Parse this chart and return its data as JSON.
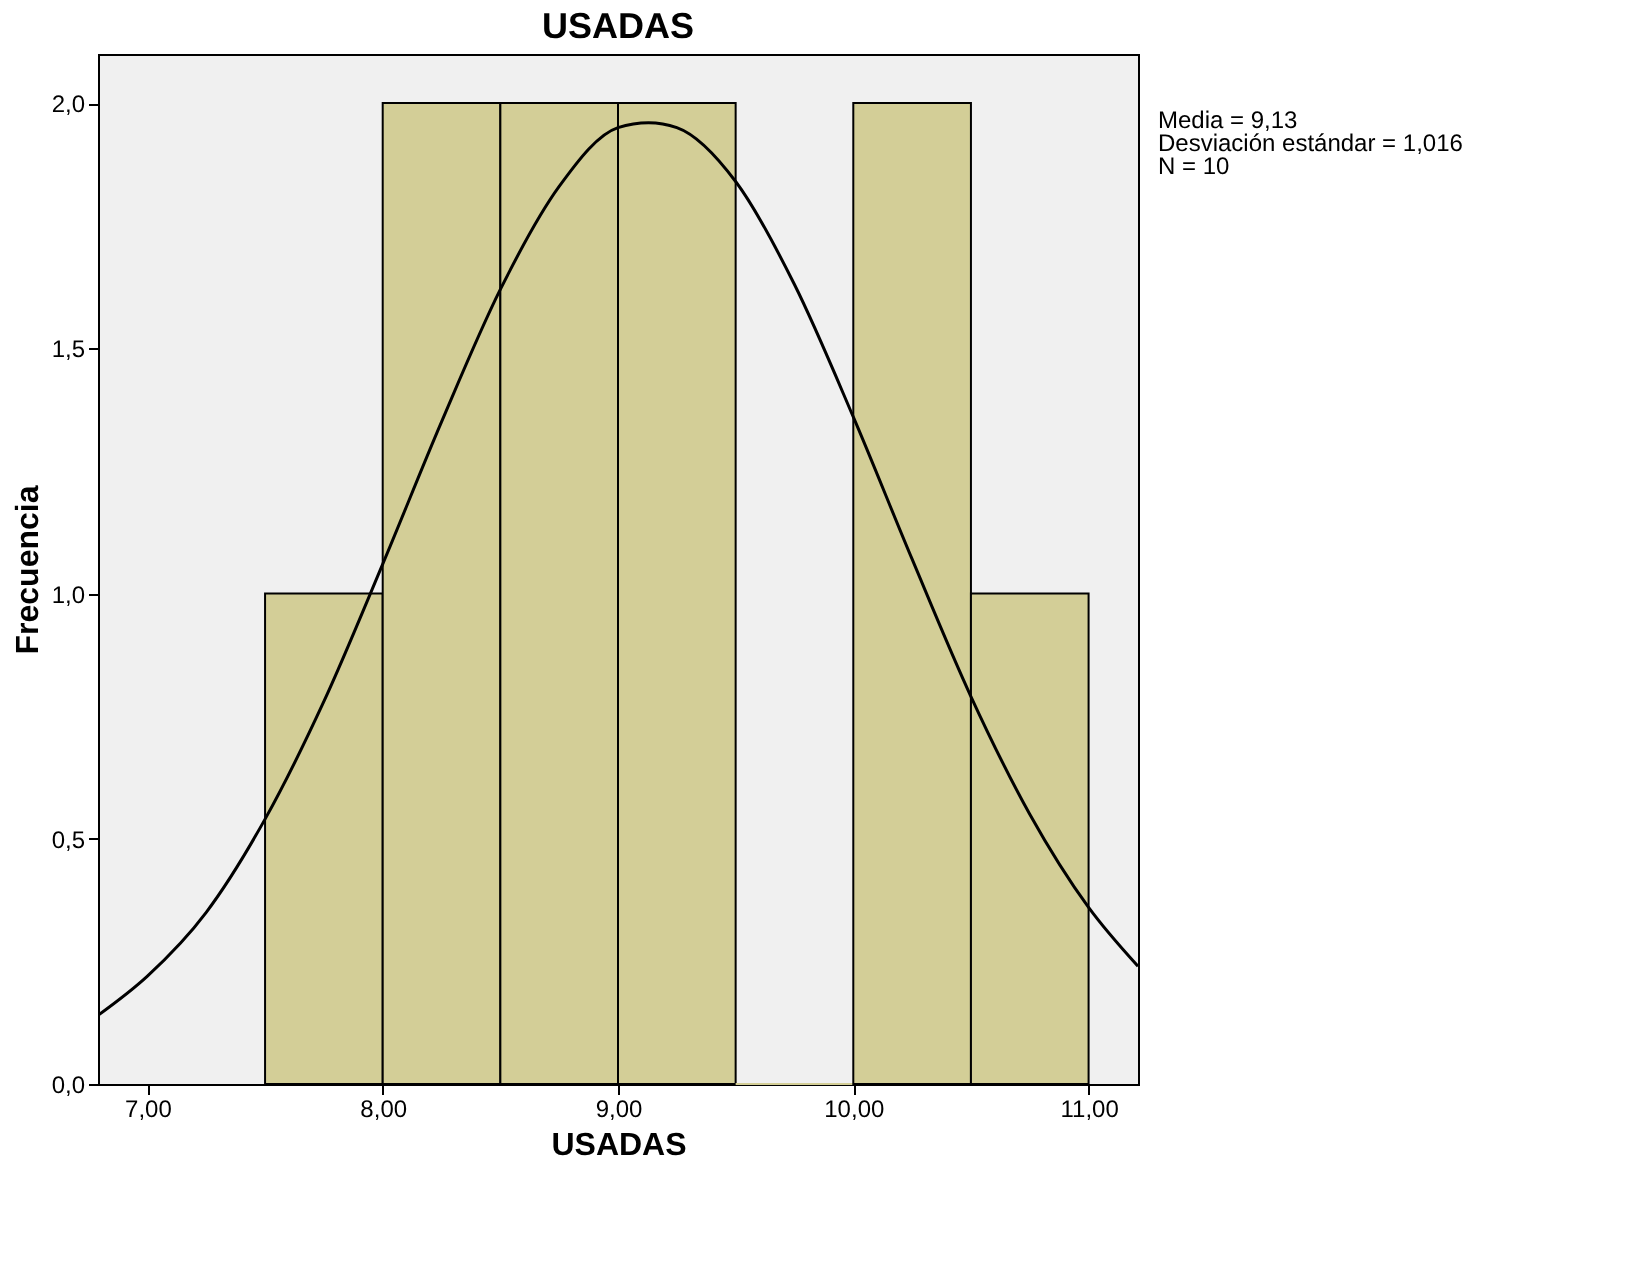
{
  "chart_data": {
    "type": "histogram",
    "title": "USADAS",
    "xlabel": "USADAS",
    "ylabel": "Frecuencia",
    "annotations": [
      "Media = 9,13",
      "Desviación estándar = 1,016",
      "N = 10"
    ],
    "series": [
      {
        "type": "histogram",
        "color": "#d3ce97",
        "bins": [
          7.5,
          8.0,
          8.5,
          9.0,
          9.5,
          10.0,
          10.5,
          11.0
        ],
        "values": [
          1,
          2,
          2,
          2,
          0,
          2,
          1
        ]
      },
      {
        "type": "line",
        "color": "#000000",
        "x": [
          6.79,
          7.0,
          7.25,
          7.5,
          7.75,
          8.0,
          8.25,
          8.5,
          8.75,
          9.0,
          9.13,
          9.25,
          9.5,
          9.75,
          10.0,
          10.25,
          10.5,
          10.75,
          11.0,
          11.21
        ],
        "values": [
          0.14,
          0.22,
          0.35,
          0.54,
          0.78,
          1.06,
          1.35,
          1.62,
          1.83,
          1.95,
          1.96,
          1.95,
          1.84,
          1.63,
          1.36,
          1.07,
          0.79,
          0.55,
          0.36,
          0.24
        ]
      }
    ],
    "xlim": [
      6.79,
      11.21
    ],
    "ylim": [
      0,
      2.1
    ],
    "xticks": [
      {
        "value": 7,
        "label": "7,00"
      },
      {
        "value": 8,
        "label": "8,00"
      },
      {
        "value": 9,
        "label": "9,00"
      },
      {
        "value": 10,
        "label": "10,00"
      },
      {
        "value": 11,
        "label": "11,00"
      }
    ],
    "yticks": [
      {
        "value": 0,
        "label": "0,0"
      },
      {
        "value": 0.5,
        "label": "0,5"
      },
      {
        "value": 1,
        "label": "1,0"
      },
      {
        "value": 1.5,
        "label": "1,5"
      },
      {
        "value": 2,
        "label": "2,0"
      }
    ],
    "grid": false
  }
}
